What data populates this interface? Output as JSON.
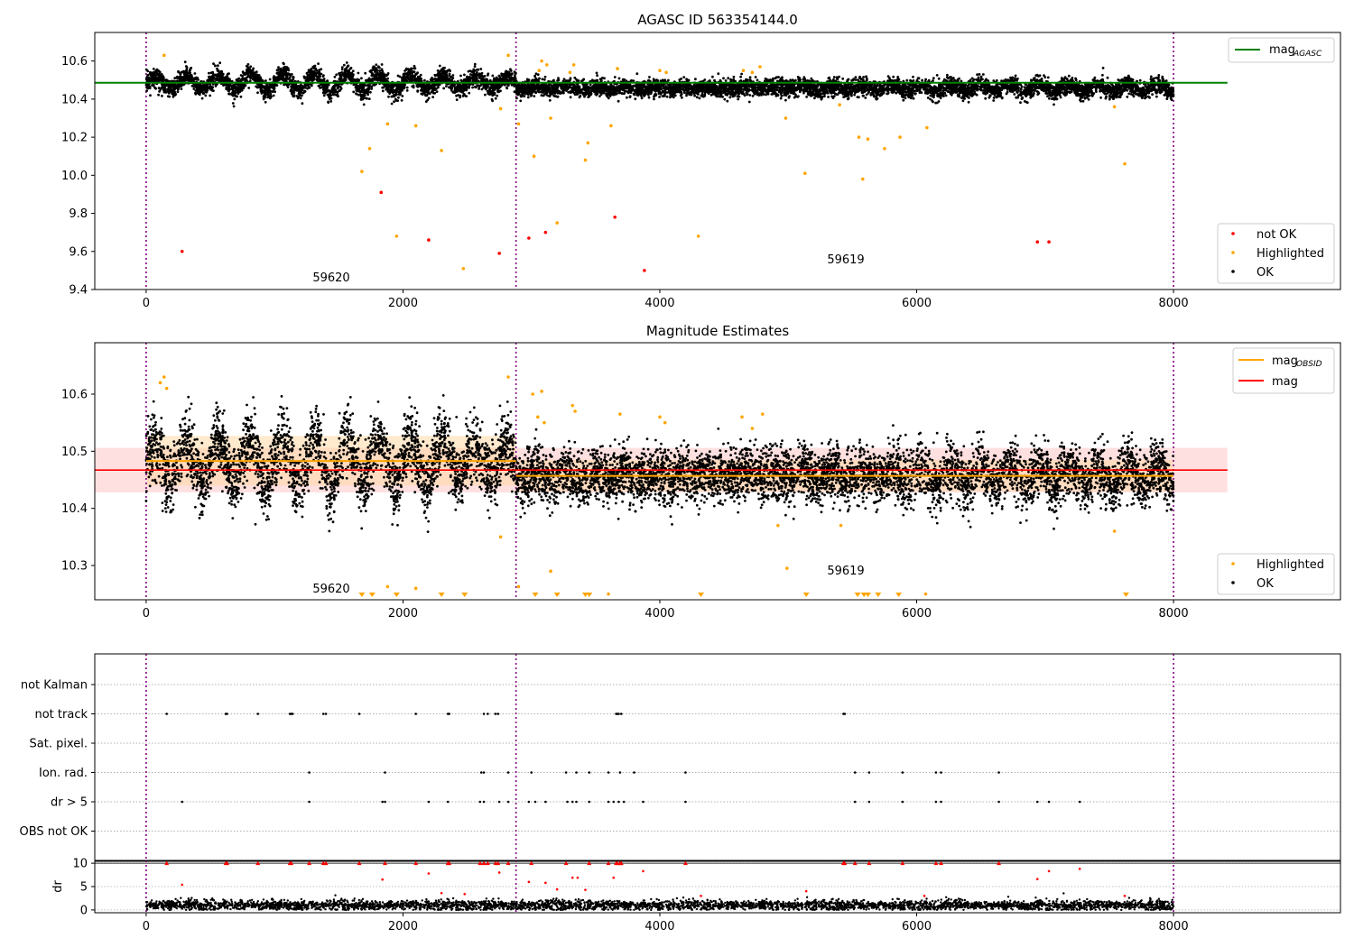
{
  "chart_data": [
    {
      "type": "scatter",
      "title": "AGASC ID 563354144.0",
      "xlabel": "",
      "ylabel": "",
      "xlim": [
        -400,
        9300
      ],
      "ylim": [
        9.4,
        10.75
      ],
      "xticks": [
        0,
        2000,
        4000,
        6000,
        8000
      ],
      "yticks": [
        9.4,
        9.6,
        9.8,
        10.0,
        10.2,
        10.4,
        10.6
      ],
      "ytick_labels": [
        "9.4",
        "9.6",
        "9.8",
        "10.0",
        "10.2",
        "10.4",
        "10.6"
      ],
      "obsid_boundaries": [
        0,
        2880,
        8000
      ],
      "obsid_labels": [
        {
          "text": "59620",
          "x": 1430,
          "y": 9.46
        },
        {
          "text": "59619",
          "x": 5430,
          "y": 9.55
        }
      ],
      "reference_line": {
        "name": "mag",
        "subscript": "AGASC",
        "value": 10.486,
        "x": [
          -400,
          8420
        ],
        "color": "#008000"
      },
      "legend": {
        "placement": "top-right",
        "entries": [
          "mag",
          "AGASC"
        ]
      },
      "legend2": {
        "placement": "bottom-right",
        "entries": [
          "not OK",
          "Highlighted",
          "OK"
        ]
      },
      "ok_series": {
        "name": "OK",
        "color": "#000000",
        "x_range": [
          0,
          8000
        ],
        "segments": [
          {
            "x0": 0,
            "x1": 2880,
            "base": 10.486,
            "amp": 0.045,
            "noise": 0.025,
            "period": 250
          },
          {
            "x0": 2880,
            "x1": 8000,
            "base": 10.458,
            "amp": 0.02,
            "noise": 0.022,
            "period": 230
          }
        ]
      },
      "highlighted": {
        "name": "Highlighted",
        "color": "#ffa500",
        "points": [
          [
            140,
            10.63
          ],
          [
            1680,
            10.02
          ],
          [
            1740,
            10.14
          ],
          [
            1880,
            10.27
          ],
          [
            1950,
            9.68
          ],
          [
            2100,
            10.26
          ],
          [
            2300,
            10.13
          ],
          [
            2470,
            9.51
          ],
          [
            2760,
            10.35
          ],
          [
            2820,
            10.63
          ],
          [
            2900,
            10.27
          ],
          [
            3020,
            10.1
          ],
          [
            3060,
            10.55
          ],
          [
            3080,
            10.6
          ],
          [
            3120,
            10.58
          ],
          [
            3150,
            10.3
          ],
          [
            3200,
            9.75
          ],
          [
            3300,
            10.54
          ],
          [
            3330,
            10.58
          ],
          [
            3420,
            10.08
          ],
          [
            3440,
            10.17
          ],
          [
            3620,
            10.26
          ],
          [
            3670,
            10.56
          ],
          [
            4000,
            10.55
          ],
          [
            4050,
            10.54
          ],
          [
            4300,
            9.68
          ],
          [
            4650,
            10.55
          ],
          [
            4720,
            10.54
          ],
          [
            4780,
            10.57
          ],
          [
            4980,
            10.3
          ],
          [
            5130,
            10.01
          ],
          [
            5400,
            10.37
          ],
          [
            5550,
            10.2
          ],
          [
            5580,
            9.98
          ],
          [
            5620,
            10.19
          ],
          [
            5750,
            10.14
          ],
          [
            5870,
            10.2
          ],
          [
            6080,
            10.25
          ],
          [
            7540,
            10.36
          ],
          [
            7620,
            10.06
          ]
        ]
      },
      "not_ok": {
        "name": "not OK",
        "color": "#ff0000",
        "points": [
          [
            280,
            9.6
          ],
          [
            1830,
            9.91
          ],
          [
            2200,
            9.66
          ],
          [
            2750,
            9.59
          ],
          [
            2980,
            9.67
          ],
          [
            3110,
            9.7
          ],
          [
            3650,
            9.78
          ],
          [
            3880,
            9.5
          ],
          [
            6940,
            9.65
          ],
          [
            7030,
            9.65
          ]
        ]
      }
    },
    {
      "type": "scatter",
      "title": "Magnitude Estimates",
      "xlabel": "",
      "ylabel": "",
      "xlim": [
        -400,
        9300
      ],
      "ylim": [
        10.24,
        10.69
      ],
      "xticks": [
        0,
        2000,
        4000,
        6000,
        8000
      ],
      "yticks": [
        10.3,
        10.4,
        10.5,
        10.6
      ],
      "ytick_labels": [
        "10.3",
        "10.4",
        "10.5",
        "10.6"
      ],
      "obsid_boundaries": [
        0,
        2880,
        8000
      ],
      "obsid_labels": [
        {
          "text": "59620",
          "x": 1430,
          "y": 10.255
        },
        {
          "text": "59619",
          "x": 5430,
          "y": 10.29
        }
      ],
      "mag_line": {
        "name": "mag",
        "value": 10.467,
        "band": [
          10.428,
          10.506
        ],
        "x": [
          -400,
          8420
        ],
        "color": "#ff0000",
        "band_color": "#ffcccc"
      },
      "obsid_mag": {
        "name": "mag",
        "subscript": "OBSID",
        "color": "#ffa500",
        "band_color": "#ffd9a6",
        "segments": [
          {
            "x0": 0,
            "x1": 2880,
            "value": 10.483,
            "band": [
              10.44,
              10.527
            ]
          },
          {
            "x0": 2880,
            "x1": 8000,
            "value": 10.457,
            "band": [
              10.43,
              10.485
            ]
          }
        ]
      },
      "legend": {
        "placement": "top-right",
        "entries": [
          "mag",
          "OBSID",
          "mag"
        ]
      },
      "legend2": {
        "placement": "bottom-right",
        "entries": [
          "Highlighted",
          "OK"
        ]
      },
      "ok_series": {
        "name": "OK",
        "color": "#000000",
        "x_range": [
          0,
          8000
        ],
        "segments": [
          {
            "x0": 0,
            "x1": 2880,
            "base": 10.483,
            "amp": 0.045,
            "noise": 0.028,
            "period": 250
          },
          {
            "x0": 2880,
            "x1": 8000,
            "base": 10.457,
            "amp": 0.02,
            "noise": 0.024,
            "period": 230
          }
        ]
      },
      "highlighted": {
        "name": "Highlighted",
        "color": "#ffa500",
        "points": [
          [
            110,
            10.62
          ],
          [
            140,
            10.63
          ],
          [
            160,
            10.61
          ],
          [
            1880,
            10.263
          ],
          [
            2100,
            10.26
          ],
          [
            2760,
            10.35
          ],
          [
            2820,
            10.63
          ],
          [
            2900,
            10.263
          ],
          [
            3010,
            10.6
          ],
          [
            3050,
            10.56
          ],
          [
            3080,
            10.605
          ],
          [
            3100,
            10.55
          ],
          [
            3150,
            10.29
          ],
          [
            3320,
            10.58
          ],
          [
            3340,
            10.57
          ],
          [
            3600,
            10.25
          ],
          [
            3690,
            10.565
          ],
          [
            4000,
            10.56
          ],
          [
            4040,
            10.55
          ],
          [
            4640,
            10.56
          ],
          [
            4720,
            10.54
          ],
          [
            4800,
            10.565
          ],
          [
            4920,
            10.37
          ],
          [
            4990,
            10.295
          ],
          [
            5410,
            10.37
          ],
          [
            6070,
            10.25
          ],
          [
            7540,
            10.36
          ]
        ]
      },
      "offscale_markers": {
        "name": "Highlighted",
        "color": "#ffa500",
        "x": [
          1680,
          1760,
          1950,
          2300,
          2480,
          3030,
          3200,
          3420,
          3450,
          4320,
          5140,
          5540,
          5590,
          5620,
          5700,
          5860,
          7630
        ]
      }
    },
    {
      "type": "scatter",
      "title": "",
      "xlabel": "",
      "ylabel": "",
      "xlim": [
        -400,
        9300
      ],
      "xticks": [
        0,
        2000,
        4000,
        6000,
        8000
      ],
      "obsid_boundaries": [
        0,
        2880,
        8000
      ],
      "categories": [
        "not Kalman",
        "not track",
        "Sat. pixel.",
        "Ion. rad.",
        "dr > 5",
        "OBS not OK"
      ],
      "flags": {
        "not Kalman": [],
        "not track": [
          160,
          620,
          630,
          870,
          1120,
          1130,
          1140,
          1380,
          1400,
          1660,
          2100,
          2350,
          2360,
          2630,
          2660,
          2720,
          2740,
          3660,
          3670,
          3680,
          3700,
          5430,
          5440
        ],
        "Sat. pixel.": [],
        "Ion. rad.": [
          1270,
          1860,
          2610,
          2630,
          2820,
          3000,
          3270,
          3350,
          3450,
          3600,
          3690,
          3800,
          4200,
          5520,
          5630,
          5890,
          6150,
          6190,
          6640
        ],
        "dr > 5": [
          280,
          1270,
          1840,
          1860,
          2200,
          2350,
          2600,
          2630,
          2750,
          2820,
          2980,
          3030,
          3110,
          3280,
          3320,
          3350,
          3450,
          3600,
          3640,
          3680,
          3720,
          3870,
          4200,
          5520,
          5630,
          5890,
          6150,
          6190,
          6640,
          6940,
          7030,
          7270
        ],
        "OBS not OK": []
      }
    },
    {
      "type": "scatter",
      "title": "",
      "xlabel": "",
      "ylabel": "dr",
      "xlim": [
        -400,
        9300
      ],
      "ylim": [
        -0.6,
        10.6
      ],
      "xticks": [
        0,
        2000,
        4000,
        6000,
        8000
      ],
      "yticks": [
        0,
        5,
        10
      ],
      "ytick_labels": [
        "0",
        "5",
        "10"
      ],
      "obsid_boundaries": [
        0,
        2880,
        8000
      ],
      "ok_series": {
        "name": "OK",
        "color": "#000000",
        "x_range": [
          0,
          8000
        ],
        "base": 1.0,
        "noise": 0.5
      },
      "capped_triangles": {
        "value": 10,
        "color": "#ff0000",
        "x": [
          160,
          620,
          630,
          870,
          1120,
          1130,
          1270,
          1380,
          1400,
          1660,
          1860,
          2100,
          2350,
          2360,
          2600,
          2630,
          2660,
          2720,
          2740,
          2820,
          3000,
          3270,
          3450,
          3600,
          3660,
          3670,
          3690,
          3700,
          4200,
          5430,
          5440,
          5520,
          5630,
          5890,
          6150,
          6190,
          6640
        ]
      },
      "red_points": {
        "color": "#ff0000",
        "points": [
          [
            280,
            5.4
          ],
          [
            1840,
            6.5
          ],
          [
            2200,
            7.8
          ],
          [
            2300,
            3.6
          ],
          [
            2480,
            3.4
          ],
          [
            2750,
            8.0
          ],
          [
            2980,
            6.0
          ],
          [
            3110,
            5.8
          ],
          [
            3200,
            4.4
          ],
          [
            3320,
            6.9
          ],
          [
            3360,
            6.9
          ],
          [
            3420,
            4.3
          ],
          [
            3640,
            6.9
          ],
          [
            3870,
            8.3
          ],
          [
            4320,
            3.0
          ],
          [
            5140,
            4.0
          ],
          [
            6940,
            6.6
          ],
          [
            7030,
            8.3
          ],
          [
            7270,
            8.8
          ],
          [
            6060,
            3.0
          ],
          [
            7620,
            3.0
          ]
        ]
      },
      "reference_line": {
        "value": 10
      }
    }
  ]
}
